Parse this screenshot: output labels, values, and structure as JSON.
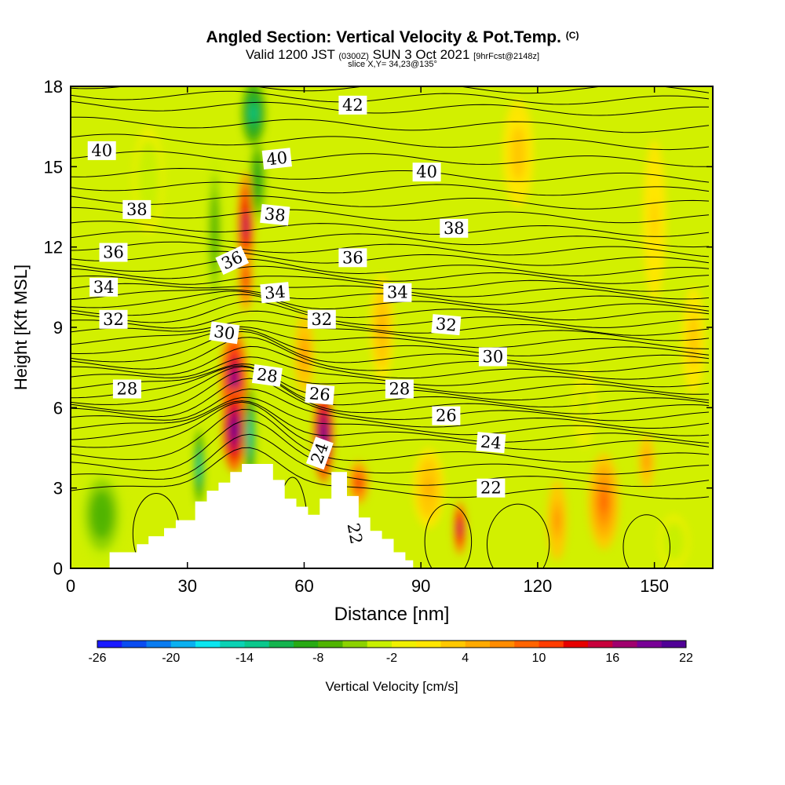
{
  "chart_data": {
    "type": "heatmap",
    "title": "Angled Section: Vertical Velocity & Pot.Temp.",
    "title_mark": "(C)",
    "subtitle_main_a": "Valid 1200 JST",
    "subtitle_small_a": "(0300Z)",
    "subtitle_main_b": "SUN 3 Oct 2021",
    "subtitle_small_b": "[9hrFcst@2148z]",
    "subtitle_slice": "slice X,Y= 34,23@135°",
    "xlabel": "Distance [nm]",
    "ylabel": "Height [Kft MSL]",
    "xlim": [
      0,
      165
    ],
    "ylim": [
      0,
      18
    ],
    "x_ticks": [
      "0",
      "30",
      "60",
      "90",
      "120",
      "150"
    ],
    "y_ticks": [
      "0",
      "3",
      "6",
      "9",
      "12",
      "15",
      "18"
    ],
    "colorbar": {
      "label": "Vertical Velocity [cm/s]",
      "tick_labels": [
        "-26",
        "-20",
        "-14",
        "-8",
        "-2",
        "4",
        "10",
        "16",
        "22"
      ],
      "colors": [
        "#1a1aff",
        "#0a4cf0",
        "#0a7cf0",
        "#0ab0f0",
        "#0ae6f0",
        "#0ad2b4",
        "#0ac88c",
        "#14b44e",
        "#28aa14",
        "#50b400",
        "#8cd200",
        "#c8f000",
        "#f0f000",
        "#ffe600",
        "#ffc800",
        "#ffaa00",
        "#ff8c00",
        "#ff6400",
        "#ff3c00",
        "#e60000",
        "#c8003c",
        "#a0006e",
        "#780096",
        "#500096"
      ]
    },
    "isentropes": [
      {
        "label": "22",
        "height_kft": 2.9
      },
      {
        "label": "24",
        "height_kft": 4.7
      },
      {
        "label": "26",
        "height_kft": 5.8
      },
      {
        "label": "28",
        "height_kft": 6.8
      },
      {
        "label": "30",
        "height_kft": 7.9
      },
      {
        "label": "32",
        "height_kft": 9.1
      },
      {
        "label": "34",
        "height_kft": 10.2
      },
      {
        "label": "36",
        "height_kft": 11.3
      },
      {
        "label": "38",
        "height_kft": 12.8
      },
      {
        "label": "40",
        "height_kft": 14.8
      },
      {
        "label": "42",
        "height_kft": 17.3
      }
    ],
    "contour_labels": [
      {
        "text": "40",
        "x": 8,
        "y": 15.6,
        "rot": 0
      },
      {
        "text": "38",
        "x": 17,
        "y": 13.4,
        "rot": 0
      },
      {
        "text": "36",
        "x": 11,
        "y": 11.8,
        "rot": 0
      },
      {
        "text": "34",
        "x": 8.5,
        "y": 10.5,
        "rot": 0
      },
      {
        "text": "32",
        "x": 11,
        "y": 9.3,
        "rot": 0
      },
      {
        "text": "28",
        "x": 14.5,
        "y": 6.7,
        "rot": 0
      },
      {
        "text": "42",
        "x": 72.5,
        "y": 17.3,
        "rot": 0
      },
      {
        "text": "40",
        "x": 53,
        "y": 15.3,
        "rot": -6
      },
      {
        "text": "40",
        "x": 91.5,
        "y": 14.8,
        "rot": 0
      },
      {
        "text": "38",
        "x": 52.5,
        "y": 13.2,
        "rot": 6
      },
      {
        "text": "38",
        "x": 98.5,
        "y": 12.7,
        "rot": 0
      },
      {
        "text": "36",
        "x": 41.5,
        "y": 11.5,
        "rot": -25
      },
      {
        "text": "36",
        "x": 72.5,
        "y": 11.6,
        "rot": 0
      },
      {
        "text": "34",
        "x": 52.5,
        "y": 10.3,
        "rot": -5
      },
      {
        "text": "34",
        "x": 84,
        "y": 10.3,
        "rot": 0
      },
      {
        "text": "32",
        "x": 64.5,
        "y": 9.3,
        "rot": 0
      },
      {
        "text": "32",
        "x": 96.5,
        "y": 9.1,
        "rot": 5
      },
      {
        "text": "30",
        "x": 39.5,
        "y": 8.8,
        "rot": 8
      },
      {
        "text": "30",
        "x": 108.5,
        "y": 7.9,
        "rot": 0
      },
      {
        "text": "28",
        "x": 50.5,
        "y": 7.2,
        "rot": 8
      },
      {
        "text": "28",
        "x": 84.5,
        "y": 6.7,
        "rot": 0
      },
      {
        "text": "26",
        "x": 64,
        "y": 6.5,
        "rot": 5
      },
      {
        "text": "26",
        "x": 96.5,
        "y": 5.7,
        "rot": 0
      },
      {
        "text": "24",
        "x": 64,
        "y": 4.3,
        "rot": -70
      },
      {
        "text": "24",
        "x": 108,
        "y": 4.7,
        "rot": 5
      },
      {
        "text": "22",
        "x": 108,
        "y": 3.0,
        "rot": 0
      },
      {
        "text": "22",
        "x": 73,
        "y": 1.3,
        "rot": 80
      }
    ],
    "terrain_profile": [
      [
        10,
        0
      ],
      [
        10,
        0.6
      ],
      [
        17,
        0.6
      ],
      [
        17,
        0.9
      ],
      [
        20,
        0.9
      ],
      [
        20,
        1.2
      ],
      [
        24,
        1.2
      ],
      [
        24,
        1.5
      ],
      [
        27,
        1.5
      ],
      [
        27,
        1.8
      ],
      [
        32,
        1.8
      ],
      [
        32,
        2.5
      ],
      [
        35,
        2.5
      ],
      [
        35,
        2.9
      ],
      [
        38,
        2.9
      ],
      [
        38,
        3.2
      ],
      [
        41,
        3.2
      ],
      [
        41,
        3.6
      ],
      [
        44,
        3.6
      ],
      [
        44,
        3.9
      ],
      [
        52,
        3.9
      ],
      [
        52,
        3.3
      ],
      [
        55,
        3.3
      ],
      [
        55,
        2.6
      ],
      [
        58,
        2.6
      ],
      [
        58,
        2.3
      ],
      [
        61,
        2.3
      ],
      [
        61,
        2.0
      ],
      [
        64,
        2.0
      ],
      [
        64,
        2.6
      ],
      [
        67,
        2.6
      ],
      [
        67,
        3.6
      ],
      [
        71,
        3.6
      ],
      [
        71,
        2.7
      ],
      [
        74,
        2.7
      ],
      [
        74,
        1.9
      ],
      [
        77,
        1.9
      ],
      [
        77,
        1.4
      ],
      [
        80,
        1.4
      ],
      [
        80,
        1.1
      ],
      [
        83,
        1.1
      ],
      [
        83,
        0.6
      ],
      [
        86,
        0.6
      ],
      [
        86,
        0.3
      ],
      [
        88,
        0.3
      ],
      [
        88,
        0
      ]
    ],
    "velocity_anomalies": [
      {
        "x": 42,
        "y": 7.0,
        "rx": 3.5,
        "ry": 2.0,
        "value": 18
      },
      {
        "x": 42,
        "y": 5.2,
        "rx": 3.0,
        "ry": 1.6,
        "value": 22
      },
      {
        "x": 45,
        "y": 12.8,
        "rx": 2.0,
        "ry": 2.0,
        "value": 16
      },
      {
        "x": 45,
        "y": 10.8,
        "rx": 1.8,
        "ry": 1.2,
        "value": 12
      },
      {
        "x": 47,
        "y": 17.0,
        "rx": 3.0,
        "ry": 1.2,
        "value": -14
      },
      {
        "x": 48,
        "y": 14.5,
        "rx": 2.0,
        "ry": 1.5,
        "value": -10
      },
      {
        "x": 46,
        "y": 5.0,
        "rx": 1.4,
        "ry": 1.8,
        "value": -16
      },
      {
        "x": 33,
        "y": 3.8,
        "rx": 1.2,
        "ry": 1.4,
        "value": -16
      },
      {
        "x": 65,
        "y": 5.0,
        "rx": 2.5,
        "ry": 1.8,
        "value": 22
      },
      {
        "x": 74,
        "y": 3.2,
        "rx": 2.5,
        "ry": 0.8,
        "value": 12
      },
      {
        "x": 100,
        "y": 1.5,
        "rx": 1.5,
        "ry": 1.0,
        "value": 16
      },
      {
        "x": 8,
        "y": 2.0,
        "rx": 6,
        "ry": 1.8,
        "value": -8
      },
      {
        "x": 37,
        "y": 12.5,
        "rx": 2.0,
        "ry": 3.0,
        "value": -8
      },
      {
        "x": 60,
        "y": 8.0,
        "rx": 2.5,
        "ry": 1.5,
        "value": 6
      },
      {
        "x": 80,
        "y": 9.0,
        "rx": 3.0,
        "ry": 2.0,
        "value": 4
      },
      {
        "x": 137,
        "y": 2.5,
        "rx": 4.0,
        "ry": 1.8,
        "value": 8
      },
      {
        "x": 125,
        "y": 1.8,
        "rx": 2.5,
        "ry": 1.5,
        "value": 6
      },
      {
        "x": 148,
        "y": 4.0,
        "rx": 2.0,
        "ry": 1.0,
        "value": 6
      },
      {
        "x": 155,
        "y": 1.0,
        "rx": 4.0,
        "ry": 1.0,
        "value": -4
      },
      {
        "x": 92,
        "y": 3.0,
        "rx": 4.0,
        "ry": 1.5,
        "value": 4
      },
      {
        "x": 20,
        "y": 14.5,
        "rx": 4.0,
        "ry": 2.0,
        "value": -4
      },
      {
        "x": 115,
        "y": 15.5,
        "rx": 4.0,
        "ry": 2.0,
        "value": 3
      },
      {
        "x": 150,
        "y": 13.0,
        "rx": 3.0,
        "ry": 3.0,
        "value": 2
      },
      {
        "x": 132,
        "y": 6.0,
        "rx": 3.0,
        "ry": 1.5,
        "value": -3
      },
      {
        "x": 160,
        "y": 8.5,
        "rx": 3.0,
        "ry": 2.0,
        "value": 3
      }
    ]
  }
}
